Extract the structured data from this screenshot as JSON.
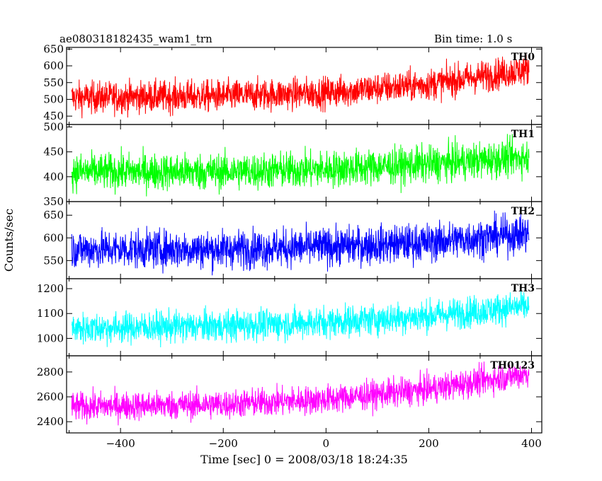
{
  "header": {
    "left": "ae080318182435_wam1_trn",
    "right": "Bin time: 1.0 s"
  },
  "chart_data": {
    "type": "line",
    "title": "ae080318182435_wam1_trn",
    "subtitle": "Bin time: 1.0 s",
    "xlabel": "Time [sec] 0 = 2008/03/18 18:24:35",
    "ylabel": "Counts/sec",
    "xlim": [
      -505,
      420
    ],
    "xticks": [
      -400,
      -200,
      0,
      200,
      400
    ],
    "x_range_data": [
      -495,
      395
    ],
    "grid": false,
    "panels": [
      {
        "name": "TH0",
        "color": "#ff0000",
        "ylim": [
          425,
          655
        ],
        "yticks": [
          450,
          500,
          550,
          600,
          650
        ],
        "trend_x": [
          -495,
          -200,
          0,
          200,
          395
        ],
        "trend_y": [
          505,
          510,
          520,
          545,
          590
        ],
        "noise_amplitude": 45
      },
      {
        "name": "TH1",
        "color": "#00ff00",
        "ylim": [
          350,
          505
        ],
        "yticks": [
          350,
          400,
          450,
          500
        ],
        "trend_x": [
          -495,
          -200,
          0,
          200,
          395
        ],
        "trend_y": [
          410,
          410,
          415,
          425,
          440
        ],
        "noise_amplitude": 35
      },
      {
        "name": "TH2",
        "color": "#0000ff",
        "ylim": [
          510,
          680
        ],
        "yticks": [
          550,
          600,
          650
        ],
        "trend_x": [
          -495,
          -200,
          0,
          200,
          395
        ],
        "trend_y": [
          575,
          575,
          580,
          590,
          610
        ],
        "noise_amplitude": 40
      },
      {
        "name": "TH3",
        "color": "#00ffff",
        "ylim": [
          930,
          1240
        ],
        "yticks": [
          1000,
          1100,
          1200
        ],
        "trend_x": [
          -495,
          -200,
          0,
          200,
          395
        ],
        "trend_y": [
          1040,
          1050,
          1065,
          1090,
          1130
        ],
        "noise_amplitude": 60
      },
      {
        "name": "TH0123",
        "color": "#ff00ff",
        "ylim": [
          2310,
          2930
        ],
        "yticks": [
          2400,
          2600,
          2800
        ],
        "trend_x": [
          -495,
          -200,
          0,
          200,
          395
        ],
        "trend_y": [
          2520,
          2540,
          2580,
          2660,
          2790
        ],
        "noise_amplitude": 110
      }
    ]
  }
}
